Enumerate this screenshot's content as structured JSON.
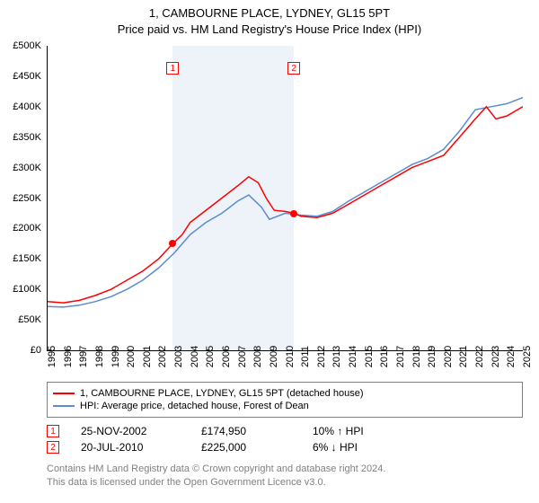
{
  "title": "1, CAMBOURNE PLACE, LYDNEY, GL15 5PT",
  "subtitle": "Price paid vs. HM Land Registry's House Price Index (HPI)",
  "chart": {
    "type": "line",
    "background_color": "#ffffff",
    "shaded_region_color": "#eef2f9",
    "axis_color": "#000000",
    "y": {
      "min": 0,
      "max": 500000,
      "tick_step": 50000,
      "ticks": [
        "£0",
        "£50K",
        "£100K",
        "£150K",
        "£200K",
        "£250K",
        "£300K",
        "£350K",
        "£400K",
        "£450K",
        "£500K"
      ],
      "label_fontsize": 11
    },
    "x": {
      "min": 1995,
      "max": 2025,
      "ticks": [
        "1995",
        "1996",
        "1997",
        "1998",
        "1999",
        "2000",
        "2001",
        "2002",
        "2003",
        "2004",
        "2005",
        "2006",
        "2007",
        "2008",
        "2009",
        "2010",
        "2011",
        "2012",
        "2013",
        "2014",
        "2015",
        "2016",
        "2017",
        "2018",
        "2019",
        "2020",
        "2021",
        "2022",
        "2023",
        "2024",
        "2025"
      ],
      "label_fontsize": 11,
      "label_rotation": -90
    },
    "shaded_regions": [
      {
        "from": 2002.9,
        "to": 2010.55
      }
    ],
    "series": [
      {
        "name": "subject",
        "label": "1, CAMBOURNE PLACE, LYDNEY, GL15 5PT (detached house)",
        "color": "#ff0000",
        "line_width": 1.5,
        "points": [
          [
            1995.0,
            80000
          ],
          [
            1996.0,
            78000
          ],
          [
            1997.0,
            82000
          ],
          [
            1998.0,
            90000
          ],
          [
            1999.0,
            100000
          ],
          [
            2000.0,
            115000
          ],
          [
            2001.0,
            130000
          ],
          [
            2002.0,
            150000
          ],
          [
            2002.9,
            174950
          ],
          [
            2003.5,
            190000
          ],
          [
            2004.0,
            210000
          ],
          [
            2005.0,
            230000
          ],
          [
            2006.0,
            250000
          ],
          [
            2007.0,
            270000
          ],
          [
            2007.7,
            285000
          ],
          [
            2008.3,
            275000
          ],
          [
            2008.8,
            250000
          ],
          [
            2009.3,
            230000
          ],
          [
            2010.0,
            228000
          ],
          [
            2010.55,
            225000
          ],
          [
            2011.0,
            220000
          ],
          [
            2012.0,
            218000
          ],
          [
            2013.0,
            225000
          ],
          [
            2014.0,
            240000
          ],
          [
            2015.0,
            255000
          ],
          [
            2016.0,
            270000
          ],
          [
            2017.0,
            285000
          ],
          [
            2018.0,
            300000
          ],
          [
            2019.0,
            310000
          ],
          [
            2020.0,
            320000
          ],
          [
            2021.0,
            350000
          ],
          [
            2022.0,
            380000
          ],
          [
            2022.7,
            400000
          ],
          [
            2023.3,
            380000
          ],
          [
            2024.0,
            385000
          ],
          [
            2025.0,
            400000
          ]
        ]
      },
      {
        "name": "hpi",
        "label": "HPI: Average price, detached house, Forest of Dean",
        "color": "#5b8bd0",
        "line_width": 1.5,
        "points": [
          [
            1995.0,
            72000
          ],
          [
            1996.0,
            71000
          ],
          [
            1997.0,
            74000
          ],
          [
            1998.0,
            80000
          ],
          [
            1999.0,
            88000
          ],
          [
            2000.0,
            100000
          ],
          [
            2001.0,
            115000
          ],
          [
            2002.0,
            135000
          ],
          [
            2003.0,
            160000
          ],
          [
            2004.0,
            190000
          ],
          [
            2005.0,
            210000
          ],
          [
            2006.0,
            225000
          ],
          [
            2007.0,
            245000
          ],
          [
            2007.7,
            255000
          ],
          [
            2008.5,
            235000
          ],
          [
            2009.0,
            215000
          ],
          [
            2010.0,
            225000
          ],
          [
            2011.0,
            222000
          ],
          [
            2012.0,
            220000
          ],
          [
            2013.0,
            228000
          ],
          [
            2014.0,
            245000
          ],
          [
            2015.0,
            260000
          ],
          [
            2016.0,
            275000
          ],
          [
            2017.0,
            290000
          ],
          [
            2018.0,
            305000
          ],
          [
            2019.0,
            315000
          ],
          [
            2020.0,
            330000
          ],
          [
            2021.0,
            360000
          ],
          [
            2022.0,
            395000
          ],
          [
            2023.0,
            400000
          ],
          [
            2024.0,
            405000
          ],
          [
            2025.0,
            415000
          ]
        ]
      }
    ],
    "sale_markers": [
      {
        "n": "1",
        "year": 2002.9,
        "price": 174950,
        "box_border": "#ff0000",
        "dot_color": "#ff0000",
        "box_top_offset": 18
      },
      {
        "n": "2",
        "year": 2010.55,
        "price": 225000,
        "box_border": "#ff0000",
        "dot_color": "#ff0000",
        "box_top_offset": 18
      }
    ]
  },
  "legend": {
    "border_color": "#808080",
    "fontsize": 11,
    "items": [
      {
        "color": "#ff0000",
        "label": "1, CAMBOURNE PLACE, LYDNEY, GL15 5PT (detached house)"
      },
      {
        "color": "#5b8bd0",
        "label": "HPI: Average price, detached house, Forest of Dean"
      }
    ]
  },
  "sales": [
    {
      "n": "1",
      "date": "25-NOV-2002",
      "price": "£174,950",
      "delta": "10% ↑ HPI",
      "border": "#ff0000"
    },
    {
      "n": "2",
      "date": "20-JUL-2010",
      "price": "£225,000",
      "delta": "6% ↓ HPI",
      "border": "#ff0000"
    }
  ],
  "footer": {
    "line1": "Contains HM Land Registry data © Crown copyright and database right 2024.",
    "line2": "This data is licensed under the Open Government Licence v3.0.",
    "color": "#808080",
    "fontsize": 11
  }
}
